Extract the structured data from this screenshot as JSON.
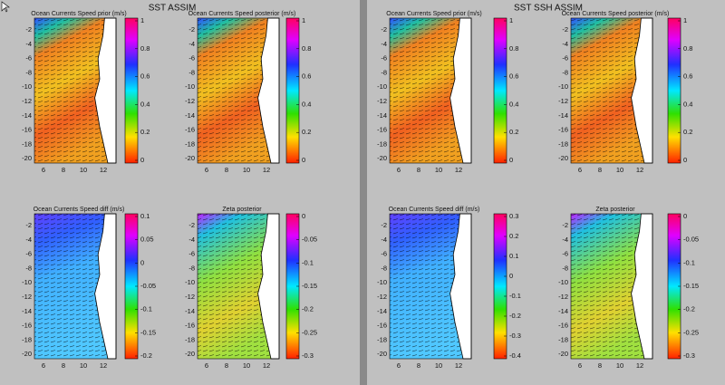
{
  "windows": [
    {
      "title": "SST ASSIM",
      "panels": [
        {
          "title": "Ocean Currents Speed prior (m/s)",
          "yticks": [
            -2,
            -4,
            -6,
            -8,
            -10,
            -12,
            -14,
            -16,
            -18,
            -20
          ],
          "xticks": [
            6,
            8,
            10,
            12
          ],
          "colorbar": [
            1,
            0.8,
            0.6,
            0.4,
            0.2,
            0
          ]
        },
        {
          "title": "Ocean Currents Speed posterior (m/s)",
          "yticks": [
            -2,
            -4,
            -6,
            -8,
            -10,
            -12,
            -14,
            -16,
            -18,
            -20
          ],
          "xticks": [
            6,
            8,
            10,
            12
          ],
          "colorbar": [
            1,
            0.8,
            0.6,
            0.4,
            0.2,
            0
          ]
        },
        {
          "title": "Ocean Currents Speed diff (m/s)",
          "yticks": [
            -2,
            -4,
            -6,
            -8,
            -10,
            -12,
            -14,
            -16,
            -18,
            -20
          ],
          "xticks": [
            6,
            8,
            10,
            12
          ],
          "colorbar": [
            0.1,
            0.05,
            0,
            -0.05,
            -0.1,
            -0.15,
            -0.2
          ]
        },
        {
          "title": "Zeta posterior",
          "yticks": [
            -2,
            -4,
            -6,
            -8,
            -10,
            -12,
            -14,
            -16,
            -18,
            -20
          ],
          "xticks": [
            6,
            8,
            10,
            12
          ],
          "colorbar": [
            0,
            -0.05,
            -0.1,
            -0.15,
            -0.2,
            -0.25,
            -0.3
          ]
        }
      ]
    },
    {
      "title": "SST SSH ASSIM",
      "panels": [
        {
          "title": "Ocean Currents Speed prior (m/s)",
          "yticks": [
            -2,
            -4,
            -6,
            -8,
            -10,
            -12,
            -14,
            -16,
            -18,
            -20
          ],
          "xticks": [
            6,
            8,
            10,
            12
          ],
          "colorbar": [
            1,
            0.8,
            0.6,
            0.4,
            0.2,
            0
          ]
        },
        {
          "title": "Ocean Currents Speed posterior (m/s)",
          "yticks": [
            -2,
            -4,
            -6,
            -8,
            -10,
            -12,
            -14,
            -16,
            -18,
            -20
          ],
          "xticks": [
            6,
            8,
            10,
            12
          ],
          "colorbar": [
            1,
            0.8,
            0.6,
            0.4,
            0.2,
            0
          ]
        },
        {
          "title": "Ocean Currents Speed diff (m/s)",
          "yticks": [
            -2,
            -4,
            -6,
            -8,
            -10,
            -12,
            -14,
            -16,
            -18,
            -20
          ],
          "xticks": [
            6,
            8,
            10,
            12
          ],
          "colorbar": [
            0.3,
            0.2,
            0.1,
            0,
            -0.1,
            -0.2,
            -0.3,
            -0.4
          ]
        },
        {
          "title": "Zeta posterior",
          "yticks": [
            -2,
            -4,
            -6,
            -8,
            -10,
            -12,
            -14,
            -16,
            -18,
            -20
          ],
          "xticks": [
            6,
            8,
            10,
            12
          ],
          "colorbar": [
            0,
            -0.05,
            -0.1,
            -0.15,
            -0.2,
            -0.25,
            -0.3
          ]
        }
      ]
    }
  ]
}
